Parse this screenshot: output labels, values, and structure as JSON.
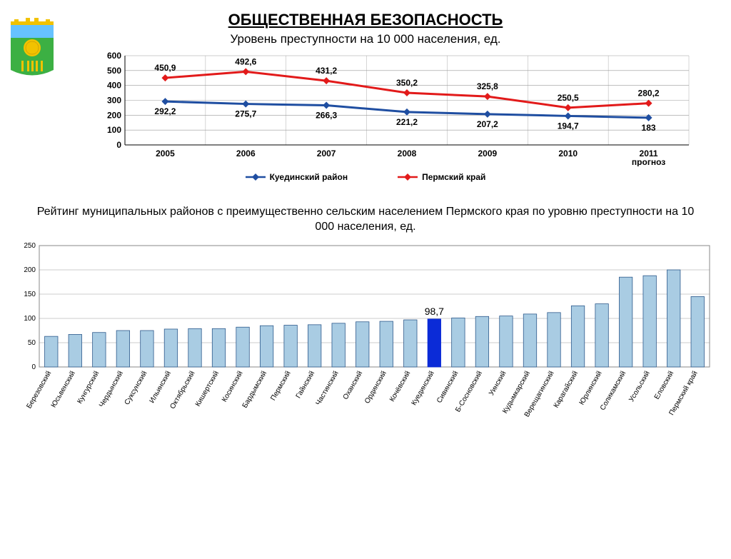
{
  "title": "ОБЩЕСТВЕННАЯ БЕЗОПАСНОСТЬ",
  "subtitle": "Уровень преступности на 10 000 населения, ед.",
  "emblem": {
    "top_color": "#66c2ff",
    "crown_color": "#f2c200",
    "field_color": "#3cb043",
    "sun_color": "#f2c200",
    "wheat_color": "#f2c200"
  },
  "line_chart": {
    "type": "line",
    "categories": [
      "2005",
      "2006",
      "2007",
      "2008",
      "2009",
      "2010",
      "2011\nпрогноз"
    ],
    "ylim": [
      0,
      600
    ],
    "ytick_step": 100,
    "grid_color": "#999999",
    "axis_fontsize": 12,
    "axis_fontweight": "bold",
    "label_fontsize": 12,
    "series": [
      {
        "name": "Куединский район",
        "color": "#1f4ea1",
        "marker": "diamond",
        "marker_size": 10,
        "line_width": 3,
        "values": [
          292.2,
          275.7,
          266.3,
          221.2,
          207.2,
          194.7,
          183
        ],
        "labels": [
          "292,2",
          "275,7",
          "266,3",
          "221,2",
          "207,2",
          "194,7",
          "183"
        ],
        "label_pos": "below"
      },
      {
        "name": "Пермский край",
        "color": "#e21a1a",
        "marker": "diamond",
        "marker_size": 10,
        "line_width": 3,
        "values": [
          450.9,
          492.6,
          431.2,
          350.2,
          325.8,
          250.5,
          280.2
        ],
        "labels": [
          "450,9",
          "492,6",
          "431,2",
          "350,2",
          "325,8",
          "250,5",
          "280,2"
        ],
        "label_pos": "above"
      }
    ]
  },
  "mid_text": "Рейтинг муниципальных районов с преимущественно сельским населением Пермского края по уровню преступности на 10 000 населения, ед.",
  "bar_chart": {
    "type": "bar",
    "ylim": [
      0,
      250
    ],
    "ytick_step": 50,
    "grid_color": "#cccccc",
    "bar_fill": "#a9cce3",
    "bar_stroke": "#2e5a8c",
    "highlight_fill": "#0b2bd7",
    "highlight_stroke": "#0b2bd7",
    "highlight_label": "98,7",
    "label_fontsize": 10,
    "axis_fontsize": 10,
    "bars": [
      {
        "name": "Березовский",
        "value": 63
      },
      {
        "name": "Юсьвенский",
        "value": 67
      },
      {
        "name": "Кунгурский",
        "value": 71
      },
      {
        "name": "Чердынский",
        "value": 75
      },
      {
        "name": "Суксунский",
        "value": 75
      },
      {
        "name": "Ильинский",
        "value": 78
      },
      {
        "name": "Октябрьский",
        "value": 79
      },
      {
        "name": "Кишертский",
        "value": 79
      },
      {
        "name": "Косинский",
        "value": 82
      },
      {
        "name": "Бардымский",
        "value": 85
      },
      {
        "name": "Пермский",
        "value": 86
      },
      {
        "name": "Гайнский",
        "value": 87
      },
      {
        "name": "Частинский",
        "value": 90
      },
      {
        "name": "Оханский",
        "value": 93
      },
      {
        "name": "Ординский",
        "value": 94
      },
      {
        "name": "Кочёвский",
        "value": 97
      },
      {
        "name": "Куединский",
        "value": 98.7,
        "highlight": true
      },
      {
        "name": "Сивинский",
        "value": 101
      },
      {
        "name": "Б-Сосновский",
        "value": 104
      },
      {
        "name": "Уинский",
        "value": 105
      },
      {
        "name": "Кудымкарский",
        "value": 109
      },
      {
        "name": "Верещагинский",
        "value": 112
      },
      {
        "name": "Карагайский",
        "value": 126
      },
      {
        "name": "Юрлинский",
        "value": 130
      },
      {
        "name": "Соликамский",
        "value": 185
      },
      {
        "name": "Усольский",
        "value": 188
      },
      {
        "name": "Еловский",
        "value": 200
      },
      {
        "name": "Пермский край",
        "value": 145
      }
    ]
  }
}
